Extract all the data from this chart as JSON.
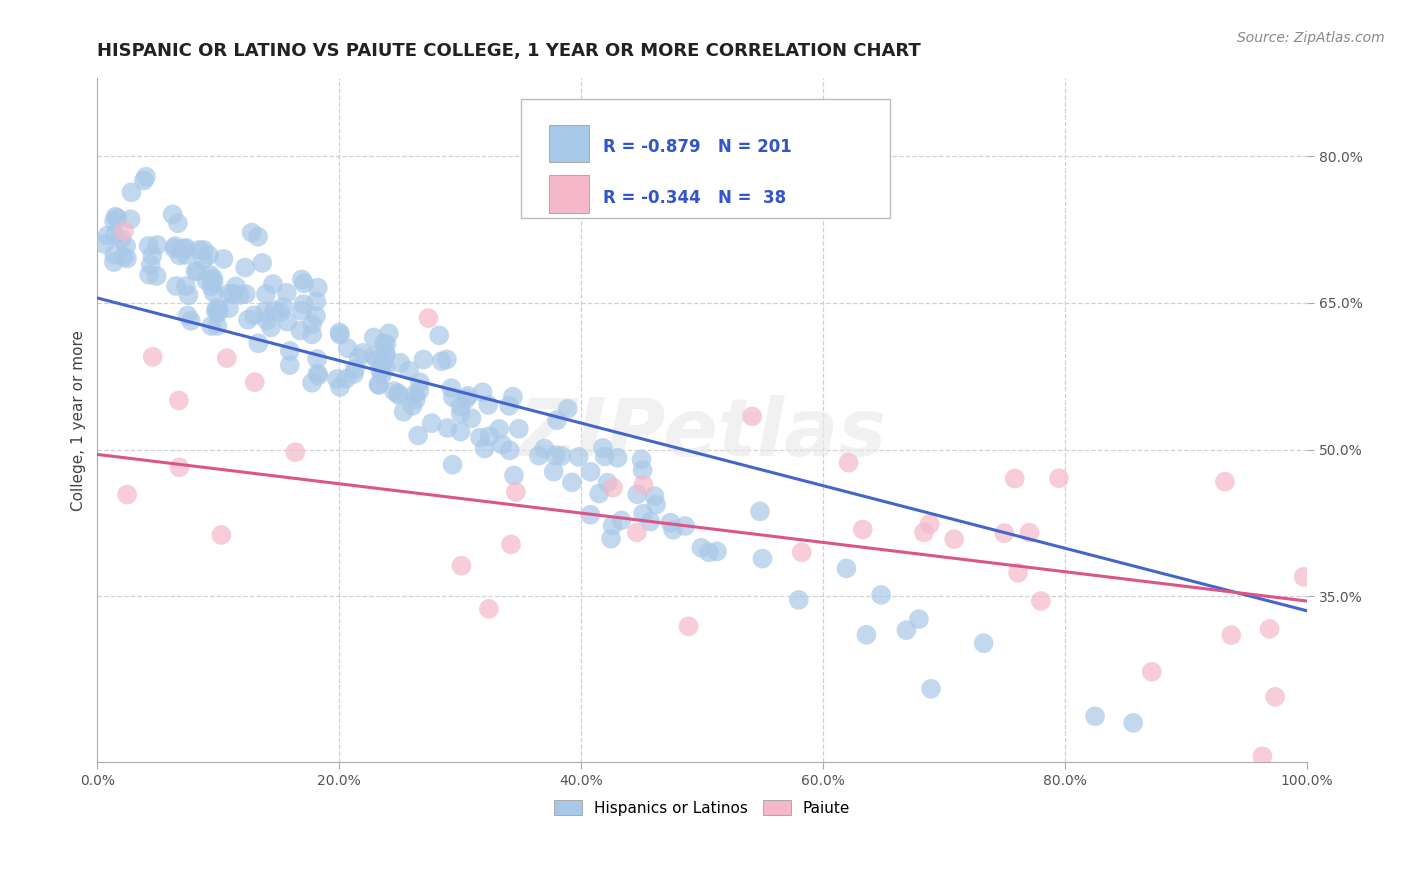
{
  "title": "HISPANIC OR LATINO VS PAIUTE COLLEGE, 1 YEAR OR MORE CORRELATION CHART",
  "source": "Source: ZipAtlas.com",
  "ylabel_label": "College, 1 year or more",
  "legend_labels": [
    "Hispanics or Latinos",
    "Paiute"
  ],
  "blue_R": -0.879,
  "blue_N": 201,
  "pink_R": -0.344,
  "pink_N": 38,
  "blue_color": "#a8c8e8",
  "blue_line_color": "#4466cc",
  "pink_color": "#f4b8c8",
  "pink_line_color": "#dd5588",
  "legend_text_color": "#3355cc",
  "title_color": "#222222",
  "grid_color": "#cccccc",
  "watermark": "ZIPetlas",
  "xlim": [
    0.0,
    1.0
  ],
  "ylim": [
    0.18,
    0.88
  ],
  "blue_line_x0": 0.0,
  "blue_line_y0": 0.655,
  "blue_line_x1": 1.0,
  "blue_line_y1": 0.335,
  "pink_line_x0": 0.0,
  "pink_line_y0": 0.495,
  "pink_line_x1": 1.0,
  "pink_line_y1": 0.345,
  "seed": 42
}
